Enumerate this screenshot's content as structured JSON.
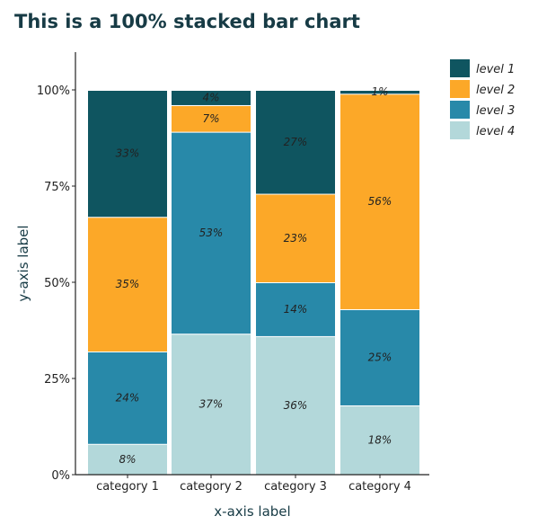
{
  "chart_data": {
    "type": "bar",
    "stacked": true,
    "normalized": true,
    "title": "This is a 100% stacked bar chart",
    "xlabel": "x-axis label",
    "ylabel": "y-axis label",
    "ylim": [
      0,
      100
    ],
    "yticks": [
      "0%",
      "25%",
      "50%",
      "75%",
      "100%"
    ],
    "categories": [
      "category 1",
      "category 2",
      "category 3",
      "category 4"
    ],
    "series": [
      {
        "name": "level 4",
        "color": "#b3d8da",
        "values": [
          8,
          37,
          36,
          18
        ],
        "labels": [
          "8%",
          "37%",
          "36%",
          "18%"
        ]
      },
      {
        "name": "level 3",
        "color": "#2889a9",
        "values": [
          24,
          53,
          14,
          25
        ],
        "labels": [
          "24%",
          "53%",
          "14%",
          "25%"
        ]
      },
      {
        "name": "level 2",
        "color": "#fca828",
        "values": [
          35,
          7,
          23,
          56
        ],
        "labels": [
          "35%",
          "7%",
          "23%",
          "56%"
        ]
      },
      {
        "name": "level 1",
        "color": "#0f5560",
        "values": [
          33,
          4,
          27,
          1
        ],
        "labels": [
          "33%",
          "4%",
          "27%",
          "1%"
        ]
      }
    ],
    "legend_order": [
      "level 1",
      "level 2",
      "level 3",
      "level 4"
    ],
    "legend_position": "top-right",
    "grid": false
  }
}
